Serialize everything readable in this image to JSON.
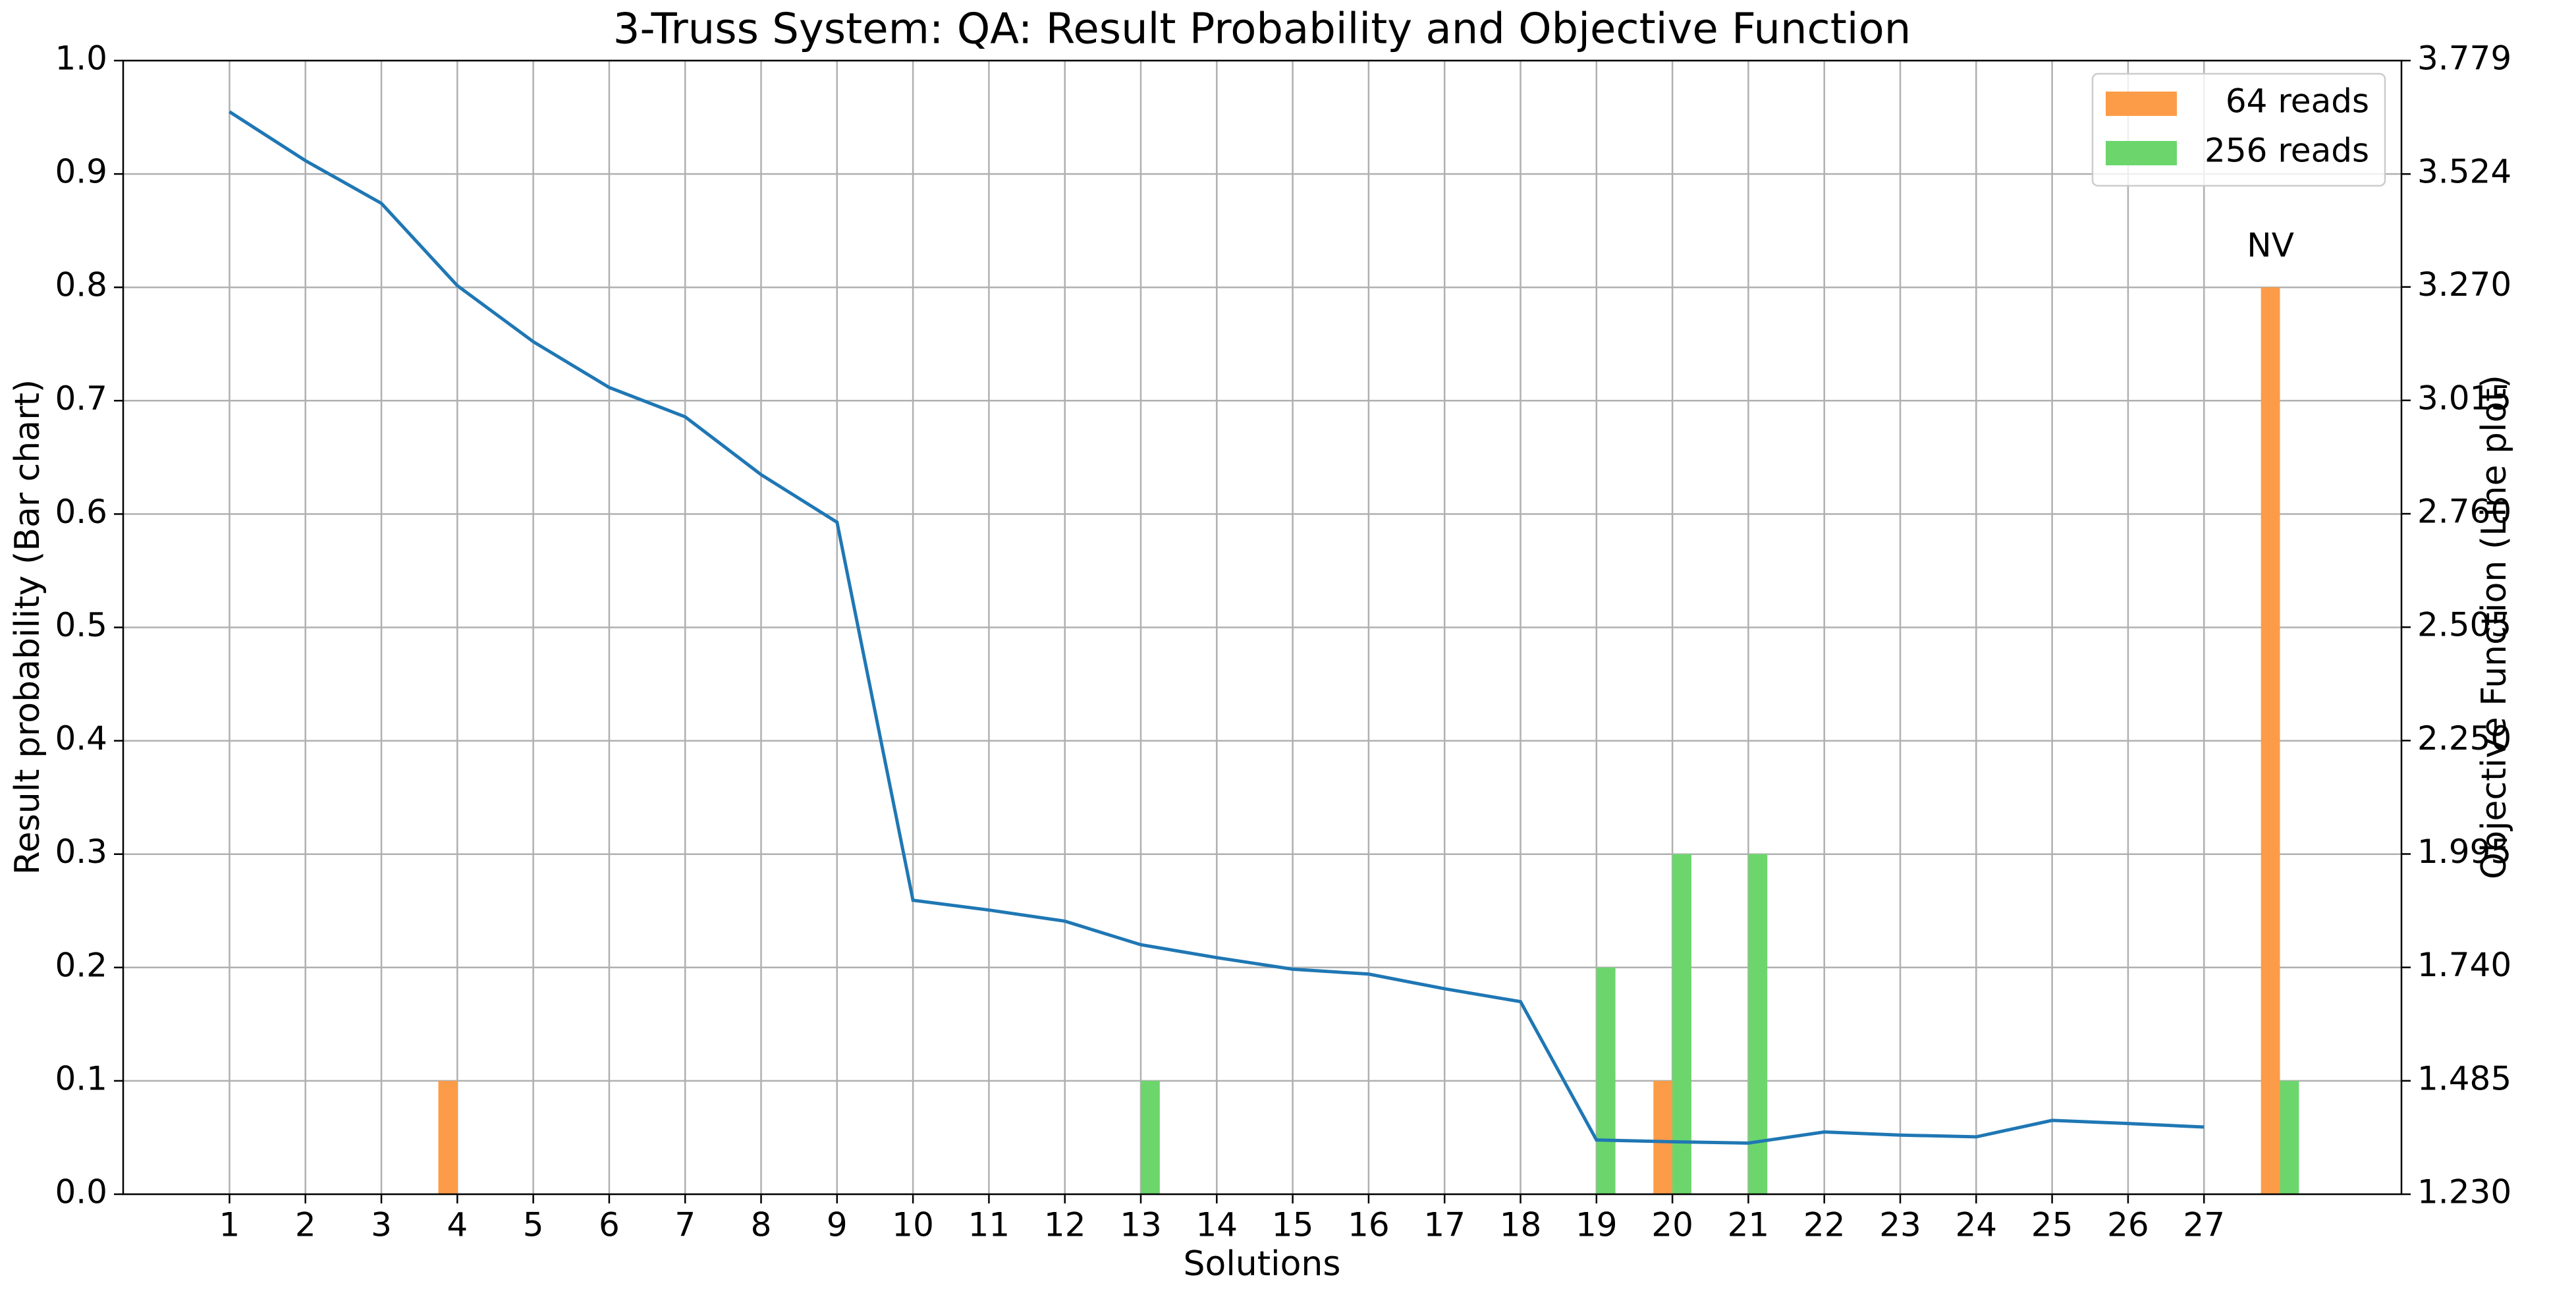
{
  "chart_data": {
    "type": "bar",
    "title": "3-Truss System: QA: Result Probability and Objective Function",
    "xlabel": "Solutions",
    "ylabel": "Result probability (Bar chart)",
    "y2label": "Objective Function (Line plot)",
    "annotation": "NV",
    "categories": [
      "1",
      "2",
      "3",
      "4",
      "5",
      "6",
      "7",
      "8",
      "9",
      "10",
      "11",
      "12",
      "13",
      "14",
      "15",
      "16",
      "17",
      "18",
      "19",
      "20",
      "21",
      "22",
      "23",
      "24",
      "25",
      "26",
      "27",
      null
    ],
    "series": [
      {
        "name": "64 reads",
        "color": "#fd9c48",
        "values": [
          0,
          0,
          0,
          0.1,
          0,
          0,
          0,
          0,
          0,
          0,
          0,
          0,
          0,
          0,
          0,
          0,
          0,
          0,
          0,
          0.1,
          0,
          0,
          0,
          0,
          0,
          0,
          0,
          0.8
        ]
      },
      {
        "name": "256 reads",
        "color": "#6cd66c",
        "values": [
          0,
          0,
          0,
          0,
          0,
          0,
          0,
          0,
          0,
          0,
          0,
          0,
          0.1,
          0,
          0,
          0,
          0,
          0,
          0.2,
          0.3,
          0.3,
          0,
          0,
          0,
          0,
          0,
          0,
          0.1
        ]
      },
      {
        "name": "Objective Function",
        "type": "line",
        "axis": "y2",
        "color": "#1f77b4",
        "values": [
          3.664,
          3.554,
          3.458,
          3.273,
          3.147,
          3.044,
          2.978,
          2.848,
          2.741,
          1.891,
          1.869,
          1.844,
          1.791,
          1.762,
          1.736,
          1.725,
          1.692,
          1.663,
          1.352,
          1.348,
          1.345,
          1.37,
          1.363,
          1.359,
          1.396,
          1.389,
          1.381,
          null
        ]
      }
    ],
    "ylim": [
      0,
      1
    ],
    "yticks": [
      {
        "value": 0,
        "label": "0.0"
      },
      0.1,
      0.2,
      0.3,
      0.4,
      0.5,
      0.6,
      0.7,
      0.8,
      0.9,
      {
        "value": 1,
        "label": "1.0"
      }
    ],
    "y2lim": [
      1.23,
      3.779
    ],
    "y2ticks": [
      {
        "value": 1.23,
        "label": "1.230"
      },
      1.485,
      {
        "value": 1.74,
        "label": "1.740"
      },
      1.995,
      {
        "value": 2.25,
        "label": "2.250"
      },
      2.505,
      {
        "value": 2.76,
        "label": "2.760"
      },
      3.015,
      {
        "value": 3.27,
        "label": "3.270"
      },
      3.524,
      3.779
    ],
    "grid": true,
    "legend": "upper right"
  }
}
